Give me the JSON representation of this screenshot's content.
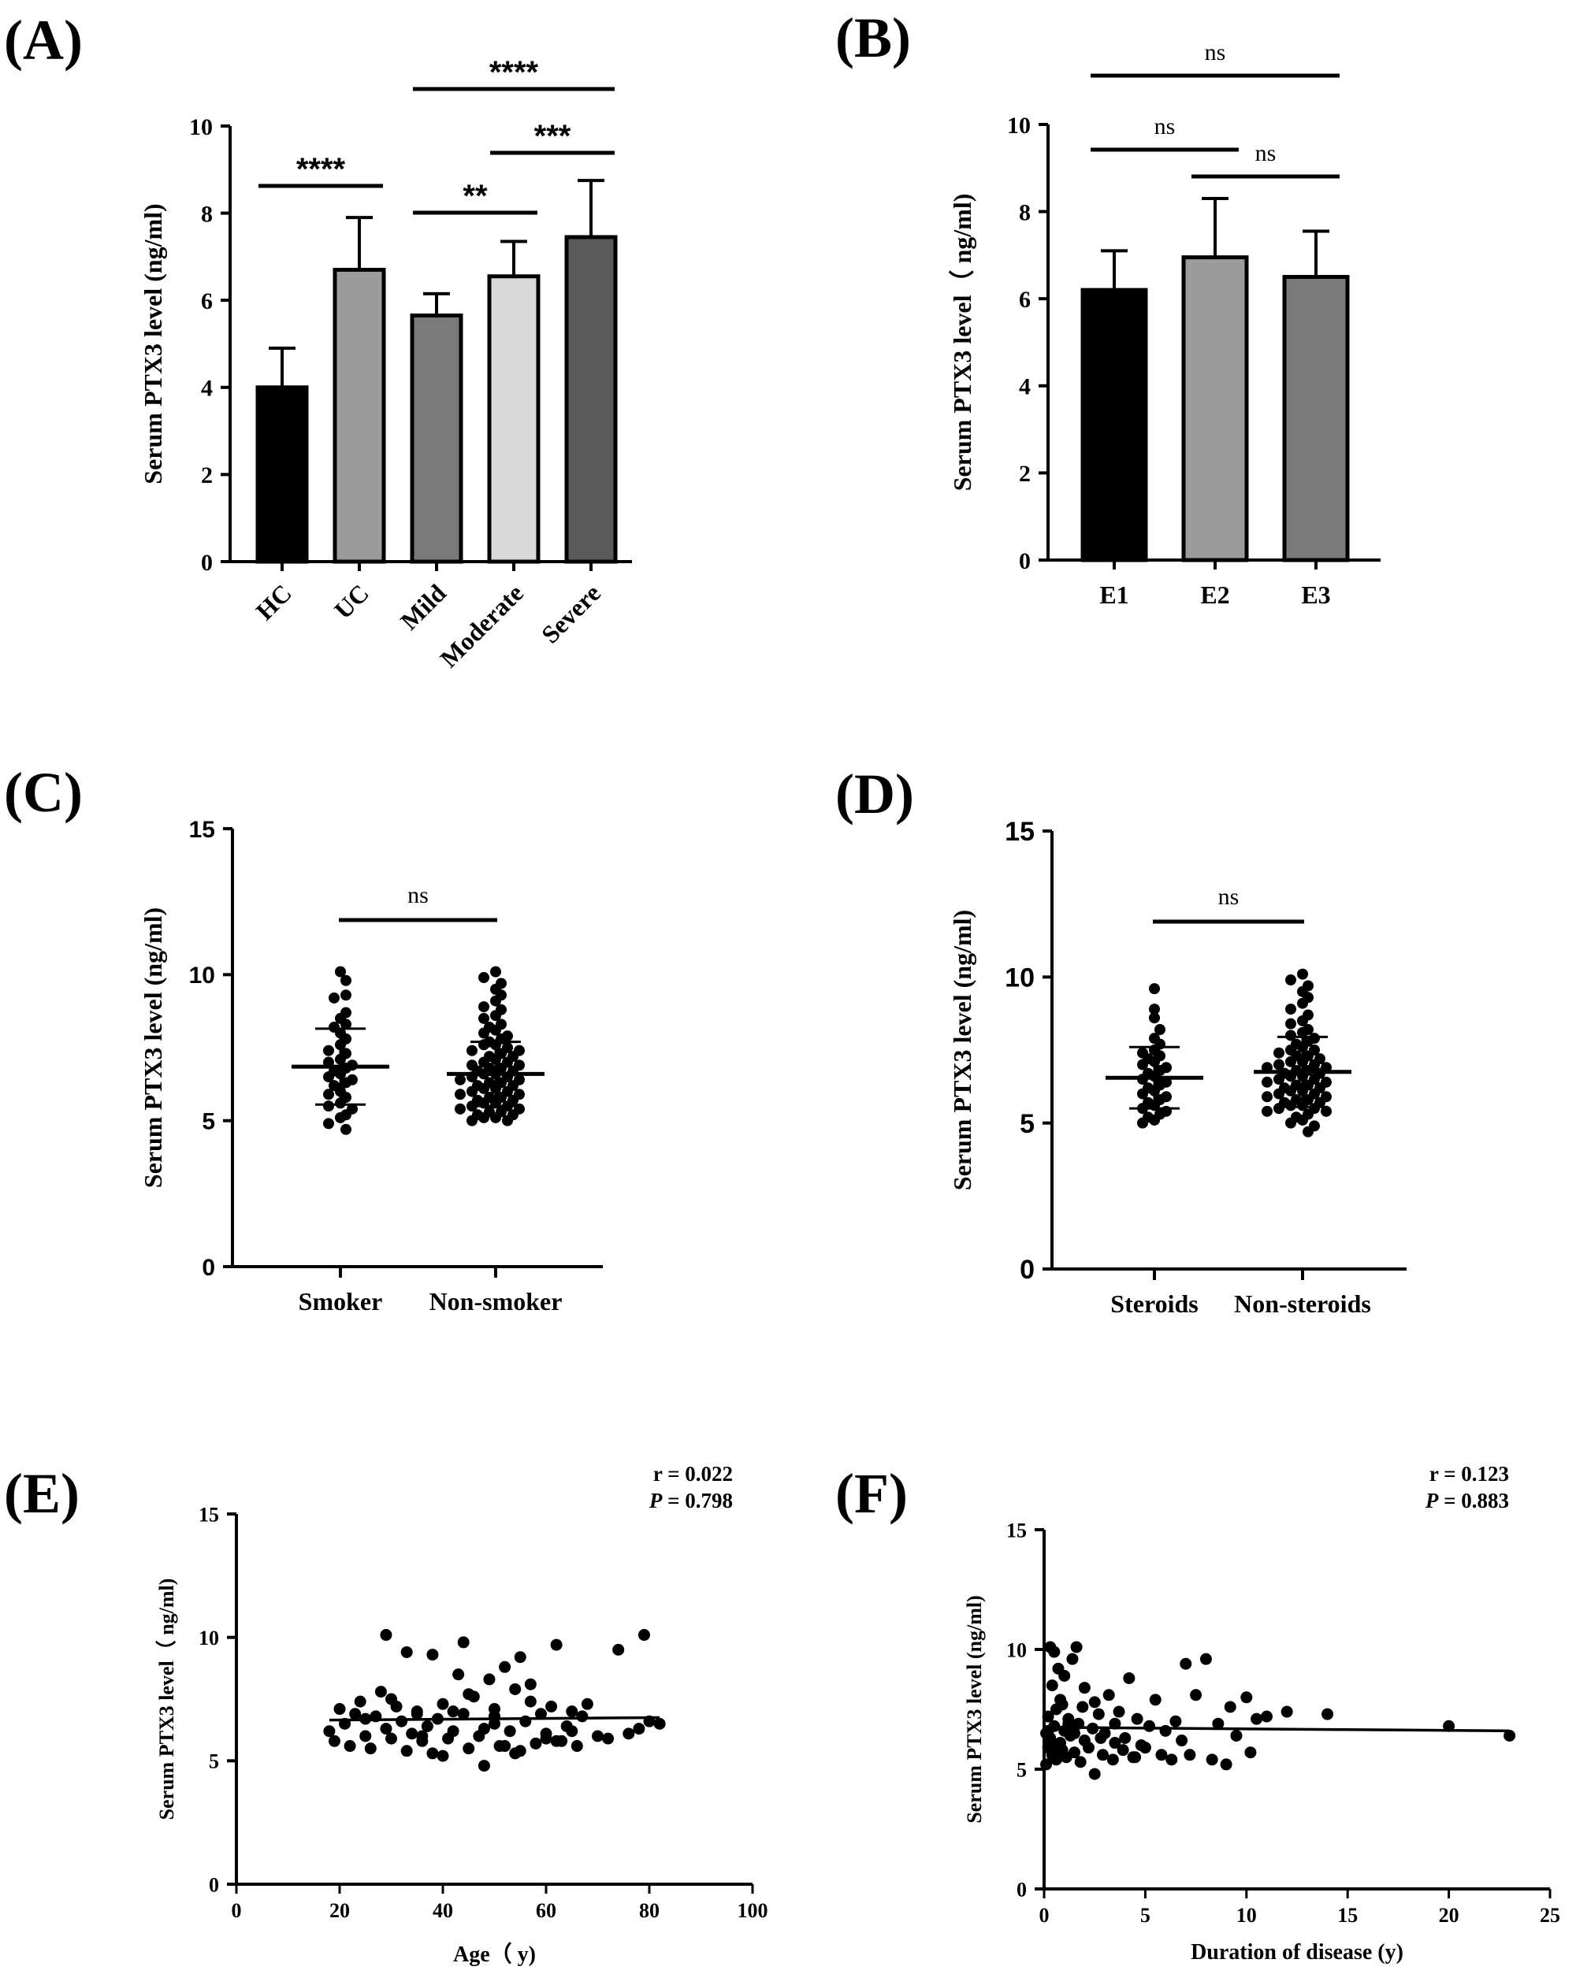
{
  "chart_data": [
    {
      "id": "A",
      "panel_label": "(A)",
      "type": "bar",
      "ylabel": "Serum PTX3 level (ng/ml)",
      "ylim": [
        0,
        10
      ],
      "yticks": [
        "0",
        "2",
        "4",
        "6",
        "8",
        "10"
      ],
      "categories": [
        "HC",
        "UC",
        "Mild",
        "Moderate",
        "Severe"
      ],
      "values": [
        4.0,
        6.7,
        5.65,
        6.55,
        7.45
      ],
      "errors": [
        0.9,
        1.2,
        0.5,
        0.8,
        1.3
      ],
      "colors": [
        "#000000",
        "#9b9b9b",
        "#7a7a7a",
        "#d9d9d9",
        "#5a5a5a"
      ],
      "significance": [
        {
          "from": 0,
          "to": 1,
          "label": "****"
        },
        {
          "from": 2,
          "to": 3,
          "label": "**"
        },
        {
          "from": 3,
          "to": 4,
          "label": "***"
        },
        {
          "from": 2,
          "to": 4,
          "label": "****"
        }
      ]
    },
    {
      "id": "B",
      "panel_label": "(B)",
      "type": "bar",
      "ylabel": "Serum PTX3 level（ ng/ml)",
      "ylim": [
        0,
        10
      ],
      "yticks": [
        "0",
        "2",
        "4",
        "6",
        "8",
        "10"
      ],
      "categories": [
        "E1",
        "E2",
        "E3"
      ],
      "values": [
        6.2,
        6.95,
        6.5
      ],
      "errors": [
        0.9,
        1.35,
        1.05
      ],
      "colors": [
        "#000000",
        "#9b9b9b",
        "#7a7a7a"
      ],
      "significance": [
        {
          "from": 0,
          "to": 1,
          "label": "ns"
        },
        {
          "from": 1,
          "to": 2,
          "label": "ns"
        },
        {
          "from": 0,
          "to": 2,
          "label": "ns"
        }
      ]
    },
    {
      "id": "C",
      "panel_label": "(C)",
      "type": "scatter",
      "subtype": "dot-plot",
      "ylabel": "Serum PTX3 level (ng/ml)",
      "ylim": [
        0,
        15
      ],
      "yticks": [
        "0",
        "5",
        "10",
        "15"
      ],
      "categories": [
        "Smoker",
        "Non-smoker"
      ],
      "means": [
        6.85,
        6.6
      ],
      "sd": [
        1.3,
        1.1
      ],
      "groups": [
        [
          10.1,
          9.8,
          9.3,
          9.2,
          8.7,
          8.5,
          8.3,
          8.2,
          8.0,
          7.8,
          7.6,
          7.4,
          7.3,
          7.1,
          7.0,
          6.9,
          6.8,
          6.7,
          6.6,
          6.5,
          6.4,
          6.3,
          6.2,
          6.0,
          5.9,
          5.8,
          5.6,
          5.5,
          5.4,
          5.2,
          5.1,
          4.9,
          4.7
        ],
        [
          10.1,
          9.9,
          9.7,
          9.5,
          9.3,
          9.1,
          8.9,
          8.8,
          8.6,
          8.5,
          8.3,
          8.2,
          8.1,
          8.0,
          7.9,
          7.8,
          7.7,
          7.6,
          7.6,
          7.5,
          7.4,
          7.4,
          7.3,
          7.2,
          7.2,
          7.1,
          7.0,
          7.0,
          6.9,
          6.9,
          6.8,
          6.8,
          6.7,
          6.7,
          6.6,
          6.6,
          6.5,
          6.5,
          6.4,
          6.4,
          6.3,
          6.3,
          6.2,
          6.2,
          6.1,
          6.1,
          6.0,
          6.0,
          5.9,
          5.9,
          5.8,
          5.8,
          5.7,
          5.7,
          5.6,
          5.6,
          5.5,
          5.5,
          5.4,
          5.4,
          5.3,
          5.3,
          5.2,
          5.2,
          5.1,
          5.1,
          5.0,
          5.0
        ]
      ],
      "significance": [
        {
          "from": 0,
          "to": 1,
          "label": "ns"
        }
      ]
    },
    {
      "id": "D",
      "panel_label": "(D)",
      "type": "scatter",
      "subtype": "dot-plot",
      "ylabel": "Serum PTX3 level (ng/ml)",
      "ylim": [
        0,
        15
      ],
      "yticks": [
        "0",
        "5",
        "10",
        "15"
      ],
      "categories": [
        "Steroids",
        "Non-steroids"
      ],
      "means": [
        6.55,
        6.75
      ],
      "sd": [
        1.05,
        1.2
      ],
      "groups": [
        [
          9.6,
          8.9,
          8.6,
          8.2,
          7.9,
          7.7,
          7.5,
          7.4,
          7.3,
          7.2,
          7.1,
          7.0,
          6.9,
          6.8,
          6.7,
          6.6,
          6.5,
          6.4,
          6.3,
          6.2,
          6.1,
          6.0,
          5.9,
          5.8,
          5.7,
          5.6,
          5.5,
          5.4,
          5.3,
          5.2,
          5.1,
          5.0
        ],
        [
          10.1,
          9.9,
          9.7,
          9.5,
          9.3,
          9.1,
          8.9,
          8.7,
          8.5,
          8.4,
          8.2,
          8.1,
          8.0,
          7.9,
          7.8,
          7.7,
          7.6,
          7.5,
          7.5,
          7.4,
          7.3,
          7.3,
          7.2,
          7.1,
          7.1,
          7.0,
          7.0,
          6.9,
          6.9,
          6.8,
          6.8,
          6.7,
          6.7,
          6.6,
          6.6,
          6.5,
          6.5,
          6.4,
          6.4,
          6.3,
          6.3,
          6.2,
          6.2,
          6.1,
          6.1,
          6.0,
          6.0,
          5.9,
          5.9,
          5.8,
          5.8,
          5.7,
          5.7,
          5.6,
          5.6,
          5.5,
          5.5,
          5.4,
          5.4,
          5.3,
          5.2,
          5.1,
          5.0,
          4.9,
          4.7
        ]
      ],
      "significance": [
        {
          "from": 0,
          "to": 1,
          "label": "ns"
        }
      ]
    },
    {
      "id": "E",
      "panel_label": "(E)",
      "type": "scatter",
      "xlabel": "Age（ y)",
      "ylabel": "Serum PTX3 level（ ng/ml)",
      "xlim": [
        0,
        100
      ],
      "ylim": [
        0,
        15
      ],
      "xticks": [
        "0",
        "20",
        "40",
        "60",
        "80",
        "100"
      ],
      "yticks": [
        "0",
        "5",
        "10",
        "15"
      ],
      "stat_r": "r = 0.022",
      "stat_p_label": "P",
      "stat_p_value": " = 0.798",
      "fit": {
        "x": [
          18,
          82
        ],
        "y": [
          6.65,
          6.75
        ]
      },
      "x": [
        18,
        19,
        20,
        21,
        22,
        23,
        24,
        25,
        26,
        27,
        28,
        29,
        29,
        30,
        31,
        32,
        33,
        33,
        34,
        35,
        36,
        37,
        38,
        38,
        39,
        40,
        41,
        42,
        43,
        44,
        44,
        45,
        46,
        47,
        48,
        49,
        50,
        50,
        51,
        52,
        53,
        54,
        54,
        55,
        56,
        57,
        58,
        59,
        60,
        61,
        62,
        63,
        64,
        65,
        66,
        67,
        68,
        70,
        72,
        74,
        76,
        78,
        79,
        80,
        82,
        25,
        35,
        45,
        55,
        65,
        30,
        40,
        50,
        60,
        42,
        48,
        52,
        57,
        36,
        62
      ],
      "y": [
        6.2,
        5.8,
        7.1,
        6.5,
        5.6,
        6.9,
        7.4,
        6.0,
        5.5,
        6.8,
        7.8,
        10.1,
        6.3,
        5.9,
        7.2,
        6.6,
        9.4,
        5.4,
        6.1,
        7.0,
        5.8,
        6.4,
        9.3,
        5.3,
        6.7,
        7.3,
        5.9,
        6.2,
        8.5,
        9.8,
        6.9,
        5.5,
        7.6,
        6.0,
        4.8,
        8.3,
        6.5,
        7.1,
        5.6,
        8.8,
        6.2,
        7.9,
        5.3,
        9.2,
        6.6,
        7.4,
        5.7,
        6.9,
        6.1,
        7.2,
        9.7,
        5.8,
        6.4,
        7.0,
        5.6,
        6.8,
        7.3,
        6.0,
        5.9,
        9.5,
        6.1,
        6.3,
        10.1,
        6.6,
        6.5,
        6.7,
        6.9,
        7.7,
        5.4,
        6.2,
        7.5,
        5.2,
        6.8,
        5.9,
        7.0,
        6.3,
        5.6,
        8.1,
        6.0,
        5.8
      ]
    },
    {
      "id": "F",
      "panel_label": "(F)",
      "type": "scatter",
      "xlabel": "Duration of disease (y)",
      "ylabel": "Serum PTX3 level (ng/ml)",
      "xlim": [
        0,
        25
      ],
      "ylim": [
        0,
        15
      ],
      "xticks": [
        "0",
        "5",
        "10",
        "15",
        "20",
        "25"
      ],
      "yticks": [
        "0",
        "5",
        "10",
        "15"
      ],
      "stat_r": "r = 0.123",
      "stat_p_label": "P",
      "stat_p_value": " = 0.883",
      "fit": {
        "x": [
          0,
          23
        ],
        "y": [
          6.75,
          6.6
        ]
      },
      "x": [
        0.1,
        0.1,
        0.2,
        0.2,
        0.3,
        0.3,
        0.4,
        0.4,
        0.5,
        0.5,
        0.6,
        0.6,
        0.7,
        0.8,
        0.8,
        0.9,
        1.0,
        1.0,
        1.1,
        1.2,
        1.3,
        1.4,
        1.5,
        1.6,
        1.7,
        1.8,
        1.9,
        2.0,
        2.0,
        2.2,
        2.4,
        2.5,
        2.7,
        2.9,
        3.0,
        3.2,
        3.4,
        3.5,
        3.7,
        3.9,
        4.0,
        4.2,
        4.4,
        4.6,
        4.8,
        5.0,
        5.2,
        5.5,
        5.8,
        6.0,
        6.3,
        6.5,
        6.8,
        7.0,
        7.2,
        7.5,
        8.0,
        8.3,
        8.6,
        9.0,
        9.2,
        9.5,
        10.0,
        10.2,
        10.5,
        11.0,
        12.0,
        14.0,
        20.0,
        23.0,
        0.5,
        1.5,
        2.5,
        3.5,
        4.5,
        0.3,
        1.2,
        2.8,
        0.9,
        0.2
      ],
      "y": [
        6.5,
        5.2,
        7.2,
        5.9,
        10.1,
        6.3,
        8.5,
        5.6,
        9.9,
        6.8,
        7.5,
        5.4,
        9.2,
        6.1,
        7.9,
        5.8,
        6.6,
        8.9,
        5.5,
        7.1,
        6.4,
        9.6,
        5.7,
        10.1,
        6.9,
        5.3,
        7.6,
        6.2,
        8.4,
        5.9,
        6.7,
        4.8,
        7.3,
        5.6,
        6.5,
        8.1,
        5.4,
        6.9,
        7.4,
        5.8,
        6.3,
        8.8,
        5.5,
        7.1,
        6.0,
        5.9,
        6.8,
        7.9,
        5.6,
        6.6,
        5.4,
        7.0,
        6.2,
        9.4,
        5.6,
        8.1,
        9.6,
        5.4,
        6.9,
        5.2,
        7.6,
        6.4,
        8.0,
        5.7,
        7.1,
        7.2,
        7.4,
        7.3,
        6.8,
        6.4,
        6.0,
        6.5,
        7.8,
        6.1,
        5.5,
        5.9,
        6.9,
        6.3,
        7.7,
        6.6
      ]
    }
  ]
}
